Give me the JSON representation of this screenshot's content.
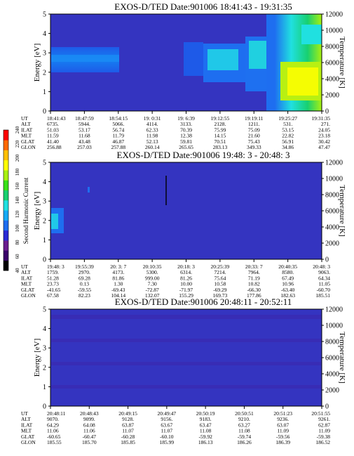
{
  "palette": {
    "background": "#3434c0",
    "colorbar": [
      "#000000",
      "#3a006a",
      "#6a1d8e",
      "#2a2ad6",
      "#1e6ef0",
      "#15aaf5",
      "#20e0e0",
      "#18d070",
      "#38e018",
      "#a8f010",
      "#ffff00",
      "#ffc000",
      "#ff6a00",
      "#ff0000"
    ]
  },
  "colorbar": {
    "label": "Second Harmonic Current",
    "ticks": [
      "40",
      "60",
      "80",
      "100",
      "120",
      "140",
      "160",
      "180",
      "200",
      "220",
      "240"
    ]
  },
  "chart_data": [
    {
      "type": "heatmap",
      "title": "EXOS-D/TED  Date:901006  18:41:43 - 19:31:35",
      "ylabel": "Energy [eV]",
      "y2label": "Temperature [K]",
      "ylim": [
        0,
        5
      ],
      "yticks": [
        "0",
        "1",
        "2",
        "3",
        "4",
        "5"
      ],
      "y2lim": [
        0,
        12000
      ],
      "y2ticks": [
        "0",
        "2000",
        "4000",
        "6000",
        "8000",
        "10000",
        "12000"
      ],
      "orbit_rows": [
        "UT",
        "ALT",
        "ILAT",
        "MLT",
        "GLAT",
        "GLON"
      ],
      "orbit_columns": [
        [
          "18:41:43",
          "6735.",
          "51.03",
          "11.59",
          "41.40",
          "256.88"
        ],
        [
          "18:47:59",
          "5944.",
          "53.17",
          "11.68",
          "43.48",
          "257.03"
        ],
        [
          "18:54:15",
          "5066.",
          "56.74",
          "11.79",
          "46.87",
          "257.88"
        ],
        [
          "19: 0:31",
          "4114.",
          "62.33",
          "11.98",
          "52.13",
          "260.14"
        ],
        [
          "19: 6:39",
          "3133.",
          "70.39",
          "12.38",
          "59.81",
          "265.65"
        ],
        [
          "19:12:55",
          "2128.",
          "75.99",
          "14.15",
          "70.51",
          "283.13"
        ],
        [
          "19:19:11",
          "1211.",
          "75.09",
          "21.60",
          "75.43",
          "349.33"
        ],
        [
          "19:25:27",
          "531.",
          "53.15",
          "22.82",
          "56.91",
          "34.86"
        ],
        [
          "19:31:35",
          "271.",
          "24.05",
          "23.18",
          "30.42",
          "47.47"
        ]
      ]
    },
    {
      "type": "heatmap",
      "title": "EXOS-D/TED  Date:901006  19:48: 3 - 20:48: 3",
      "ylabel": "Energy [eV]",
      "y2label": "Temperature [K]",
      "ylim": [
        0,
        5
      ],
      "yticks": [
        "0",
        "1",
        "2",
        "3",
        "4",
        "5"
      ],
      "y2lim": [
        0,
        12000
      ],
      "y2ticks": [
        "0",
        "2000",
        "4000",
        "6000",
        "8000",
        "10000",
        "12000"
      ],
      "orbit_rows": [
        "UT",
        "ALT",
        "ILAT",
        "MLT",
        "GLAT",
        "GLON"
      ],
      "orbit_columns": [
        [
          "19:48: 3",
          "1759.",
          "51.28",
          "23.73",
          "-41.65",
          "67.58"
        ],
        [
          "19:55:39",
          "2970.",
          "69.28",
          "0.13",
          "-59.55",
          "82.23"
        ],
        [
          "20: 3: 7",
          "4173.",
          "81.86",
          "1.30",
          "-69.43",
          "104.14"
        ],
        [
          "20:10:35",
          "5300.",
          "999.00",
          "7.30",
          "-72.87",
          "132.07"
        ],
        [
          "20:18: 3",
          "6314.",
          "81.26",
          "10.00",
          "-71.97",
          "155.29"
        ],
        [
          "20:25:39",
          "7214.",
          "75.64",
          "10.58",
          "-69.29",
          "169.73"
        ],
        [
          "20:33: 7",
          "7964.",
          "71.19",
          "10.82",
          "-66.30",
          "177.86"
        ],
        [
          "20:40:35",
          "8580.",
          "67.49",
          "10.96",
          "-63.40",
          "182.63"
        ],
        [
          "20:48: 3",
          "9063.",
          "64.34",
          "11.05",
          "-60.70",
          "185.51"
        ]
      ]
    },
    {
      "type": "heatmap",
      "title": "EXOS-D/TED  Date:901006  20:48:11 - 20:52:11",
      "ylabel": "Energy [eV]",
      "y2label": "Temperature [K]",
      "ylim": [
        0,
        5
      ],
      "yticks": [
        "0",
        "1",
        "2",
        "3",
        "4",
        "5"
      ],
      "y2lim": [
        0,
        12000
      ],
      "y2ticks": [
        "0",
        "2000",
        "4000",
        "6000",
        "8000",
        "10000",
        "12000"
      ],
      "orbit_rows": [
        "UT",
        "ALT",
        "ILAT",
        "MLT",
        "GLAT",
        "GLON"
      ],
      "orbit_columns": [
        [
          "20:48:11",
          "9070.",
          "64.29",
          "11.06",
          "-60.65",
          "185.55"
        ],
        [
          "20:48:43",
          "9099.",
          "64.08",
          "11.06",
          "-60.47",
          "185.70"
        ],
        [
          "20:49:15",
          "9128.",
          "63.87",
          "11.07",
          "-60.28",
          "185.85"
        ],
        [
          "20:49:47",
          "9156.",
          "63.67",
          "11.07",
          "-60.10",
          "185.99"
        ],
        [
          "20:50:19",
          "9183.",
          "63.47",
          "11.08",
          "-59.92",
          "186.13"
        ],
        [
          "20:50:51",
          "9210.",
          "63.27",
          "11.08",
          "-59.74",
          "186.26"
        ],
        [
          "20:51:23",
          "9236.",
          "63.07",
          "11.09",
          "-59.56",
          "186.39"
        ],
        [
          "20:51:55",
          "9261.",
          "62.87",
          "11.09",
          "-59.38",
          "186.52"
        ]
      ]
    }
  ]
}
